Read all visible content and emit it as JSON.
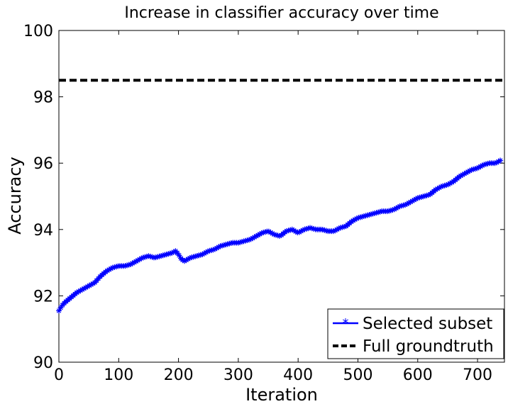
{
  "chart_data": {
    "type": "line",
    "title": "Increase in classifier accuracy over time",
    "xlabel": "Iteration",
    "ylabel": "Accuracy",
    "xlim": [
      0,
      745
    ],
    "ylim": [
      90,
      100
    ],
    "xticks": [
      0,
      100,
      200,
      300,
      400,
      500,
      600,
      700
    ],
    "yticks": [
      90,
      92,
      94,
      96,
      98,
      100
    ],
    "grid": false,
    "legend_position": "bottom-right",
    "series": [
      {
        "name": "Selected subset",
        "color": "#0000ff",
        "style": "solid-with-star-markers",
        "x": [
          0,
          5,
          10,
          20,
          30,
          40,
          50,
          60,
          70,
          80,
          90,
          100,
          110,
          120,
          130,
          140,
          150,
          160,
          170,
          180,
          190,
          195,
          200,
          205,
          210,
          220,
          230,
          240,
          250,
          260,
          270,
          280,
          290,
          300,
          310,
          320,
          330,
          340,
          350,
          360,
          370,
          380,
          390,
          400,
          410,
          420,
          430,
          440,
          450,
          460,
          470,
          480,
          490,
          500,
          510,
          520,
          530,
          540,
          550,
          560,
          570,
          580,
          590,
          600,
          610,
          620,
          630,
          640,
          650,
          660,
          670,
          680,
          690,
          700,
          710,
          720,
          730,
          740
        ],
        "y": [
          91.55,
          91.7,
          91.8,
          91.95,
          92.1,
          92.2,
          92.3,
          92.4,
          92.6,
          92.75,
          92.85,
          92.9,
          92.9,
          92.95,
          93.05,
          93.15,
          93.2,
          93.15,
          93.2,
          93.25,
          93.3,
          93.35,
          93.25,
          93.1,
          93.05,
          93.15,
          93.2,
          93.25,
          93.35,
          93.4,
          93.5,
          93.55,
          93.6,
          93.6,
          93.65,
          93.7,
          93.8,
          93.9,
          93.95,
          93.85,
          93.8,
          93.95,
          94.0,
          93.9,
          94.0,
          94.05,
          94.0,
          94.0,
          93.95,
          93.95,
          94.05,
          94.1,
          94.25,
          94.35,
          94.4,
          94.45,
          94.5,
          94.55,
          94.55,
          94.6,
          94.7,
          94.75,
          94.85,
          94.95,
          95.0,
          95.05,
          95.2,
          95.3,
          95.35,
          95.45,
          95.6,
          95.7,
          95.8,
          95.85,
          95.95,
          96.0,
          96.0,
          96.1
        ]
      },
      {
        "name": "Full groundtruth",
        "color": "#000000",
        "style": "dashed",
        "x": [
          0,
          745
        ],
        "y": [
          98.5,
          98.5
        ]
      }
    ]
  }
}
